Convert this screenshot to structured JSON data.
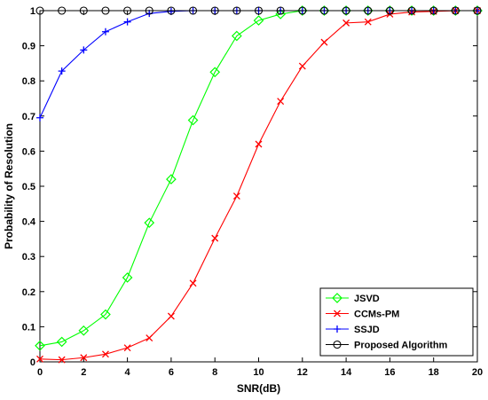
{
  "chart_data": {
    "type": "line",
    "xlabel": "SNR(dB)",
    "ylabel": "Probability of Resolution",
    "xlim": [
      0,
      20
    ],
    "ylim": [
      0,
      1
    ],
    "xticks": [
      0,
      2,
      4,
      6,
      8,
      10,
      12,
      14,
      16,
      18,
      20
    ],
    "yticks": [
      0,
      0.1,
      0.2,
      0.3,
      0.4,
      0.5,
      0.6,
      0.7,
      0.8,
      0.9,
      1
    ],
    "ytick_labels": [
      "0",
      "0.1",
      "0.2",
      "0.3",
      "0.4",
      "0.5",
      "0.6",
      "0.7",
      "0.8",
      "0.9",
      "1"
    ],
    "grid": false,
    "legend_position": "bottom-right",
    "x": [
      0,
      1,
      2,
      3,
      4,
      5,
      6,
      7,
      8,
      9,
      10,
      11,
      12,
      13,
      14,
      15,
      16,
      17,
      18,
      19,
      20
    ],
    "series": [
      {
        "name": "JSVD",
        "color": "#00ff00",
        "marker": "diamond",
        "values": [
          0.046,
          0.057,
          0.089,
          0.135,
          0.24,
          0.396,
          0.52,
          0.688,
          0.825,
          0.928,
          0.972,
          0.99,
          1,
          1,
          1,
          1,
          1,
          1,
          1,
          1,
          1
        ]
      },
      {
        "name": "CCMs-PM",
        "color": "#ff0000",
        "marker": "x",
        "values": [
          0.008,
          0.006,
          0.012,
          0.022,
          0.04,
          0.068,
          0.13,
          0.224,
          0.352,
          0.472,
          0.62,
          0.742,
          0.842,
          0.91,
          0.965,
          0.968,
          0.99,
          0.996,
          0.998,
          1,
          1
        ]
      },
      {
        "name": "SSJD",
        "color": "#0000ff",
        "marker": "plus",
        "values": [
          0.695,
          0.828,
          0.888,
          0.94,
          0.968,
          0.992,
          0.998,
          1,
          1,
          1,
          1,
          1,
          1,
          1,
          1,
          1,
          1,
          1,
          1,
          1,
          1
        ]
      },
      {
        "name": "Proposed Algorithm",
        "color": "#000000",
        "marker": "circle",
        "values": [
          1,
          1,
          1,
          1,
          1,
          1,
          1,
          1,
          1,
          1,
          1,
          1,
          1,
          1,
          1,
          1,
          1,
          1,
          1,
          1,
          1
        ]
      }
    ]
  }
}
